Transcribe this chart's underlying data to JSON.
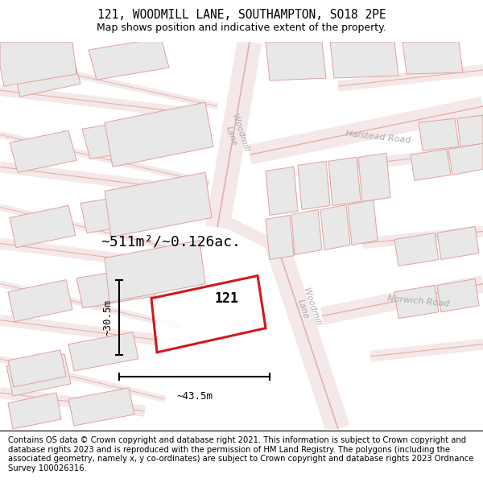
{
  "title": "121, WOODMILL LANE, SOUTHAMPTON, SO18 2PE",
  "subtitle": "Map shows position and indicative extent of the property.",
  "footer": "Contains OS data © Crown copyright and database right 2021. This information is subject to Crown copyright and database rights 2023 and is reproduced with the permission of HM Land Registry. The polygons (including the associated geometry, namely x, y co-ordinates) are subject to Crown copyright and database rights 2023 Ordnance Survey 100026316.",
  "title_fontsize": 10.5,
  "subtitle_fontsize": 9,
  "footer_fontsize": 7.2,
  "area_text": "~511m²/~0.126ac.",
  "width_text": "~43.5m",
  "height_text": "~30.5m",
  "property_label": "121",
  "road_color": "#f0c0c0",
  "road_edge_color": "#e8b0b0",
  "building_fill": "#e8e8e8",
  "building_edge": "#e0a0a0",
  "map_bg": "#fafafa",
  "property_edge": "#cc0000"
}
